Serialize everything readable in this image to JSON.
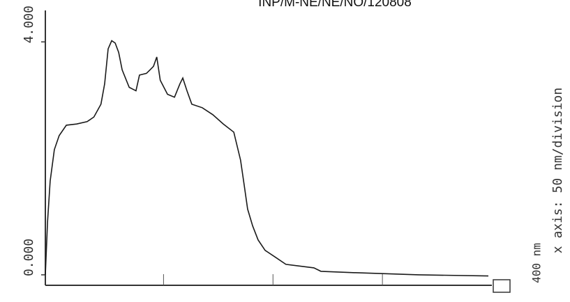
{
  "chart_data": {
    "type": "line",
    "title": "INP/M-NE/NE/NO/120808",
    "annotations": [
      "x axis: 50 nm/division",
      "400 nm"
    ],
    "x": [
      604,
      603.0,
      601.8,
      599.9,
      597.7,
      594.4,
      589.7,
      584.9,
      581.8,
      578.6,
      576.9,
      575.3,
      573.7,
      572.1,
      570.5,
      568.9,
      565.7,
      562.6,
      561.0,
      557.8,
      556.2,
      554.6,
      553.1,
      551.5,
      548.2,
      545.0,
      542.5,
      541.2,
      539.3,
      537.1,
      532.3,
      527.5,
      522.7,
      517.9,
      514.8,
      513.2,
      511.6,
      509.3,
      506.8,
      503.6,
      498.8,
      494.1,
      481.3,
      478.1,
      465.3,
      433.5,
      401.6
    ],
    "series": [
      {
        "color": "#1a1a1a",
        "values": [
          0,
          0.9,
          1.61,
          2.15,
          2.39,
          2.57,
          2.59,
          2.63,
          2.71,
          2.93,
          3.28,
          3.88,
          4.02,
          3.98,
          3.82,
          3.52,
          3.22,
          3.16,
          3.43,
          3.46,
          3.52,
          3.58,
          3.74,
          3.34,
          3.1,
          3.05,
          3.28,
          3.38,
          3.16,
          2.93,
          2.87,
          2.75,
          2.59,
          2.45,
          1.97,
          1.55,
          1.13,
          0.84,
          0.6,
          0.42,
          0.3,
          0.18,
          0.12,
          0.06,
          0.04,
          0,
          -0.02
        ]
      }
    ],
    "xlim": [
      604,
      400
    ],
    "xticks": [
      550,
      500,
      450
    ],
    "ylim": [
      -0.18,
      4.54
    ],
    "yticks": [
      {
        "value": 0,
        "label": "0.000"
      },
      {
        "value": 4,
        "label": "4.000"
      }
    ]
  }
}
